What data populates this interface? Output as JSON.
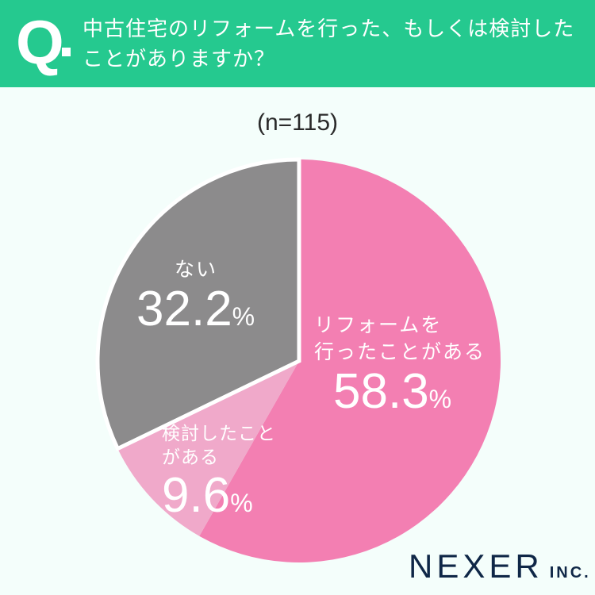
{
  "header": {
    "q_mark": "Q",
    "question": "中古住宅のリフォームを行った、もしくは検討したことがありますか？",
    "question_line1": "中古住宅のリフォームを行った、もしくは検討した",
    "question_line2": "ことがありますか？"
  },
  "sample": "(n=115)",
  "labels": {
    "done": {
      "line1": "リフォームを",
      "line2": "行ったことがある",
      "value": "58.3",
      "sign": "%"
    },
    "considered": {
      "line1": "検討したこと",
      "line2": "がある",
      "value": "9.6",
      "sign": "%"
    },
    "none": {
      "line1": "ない",
      "value": "32.2",
      "sign": "%"
    }
  },
  "logo": {
    "name": "NEXER",
    "suffix": "INC."
  },
  "colors": {
    "header": "#25c98f",
    "done": "#f37fb2",
    "considered": "#f0a9ca",
    "none": "#8c8b8c",
    "background": "#f4fefb"
  },
  "chart_data": {
    "type": "pie",
    "title": "中古住宅のリフォームを行った、もしくは検討したことがありますか？",
    "subtitle": "(n=115)",
    "categories": [
      "リフォームを行ったことがある",
      "検討したことがある",
      "ない"
    ],
    "values": [
      58.3,
      9.6,
      32.2
    ],
    "unit": "%",
    "start_angle": "12 o'clock, clockwise",
    "legend": "inline labels"
  }
}
